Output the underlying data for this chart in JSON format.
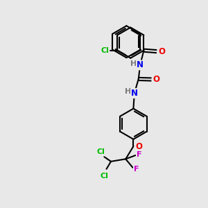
{
  "background_color": "#e8e8e8",
  "atom_colors": {
    "C": "#000000",
    "H": "#777777",
    "N": "#0000ee",
    "O": "#ee0000",
    "Cl": "#00bb00",
    "F": "#cc00cc"
  },
  "bond_color": "#000000",
  "bond_width": 1.5,
  "figsize": [
    3.0,
    3.0
  ],
  "dpi": 100,
  "xlim": [
    0,
    10
  ],
  "ylim": [
    0,
    10
  ]
}
